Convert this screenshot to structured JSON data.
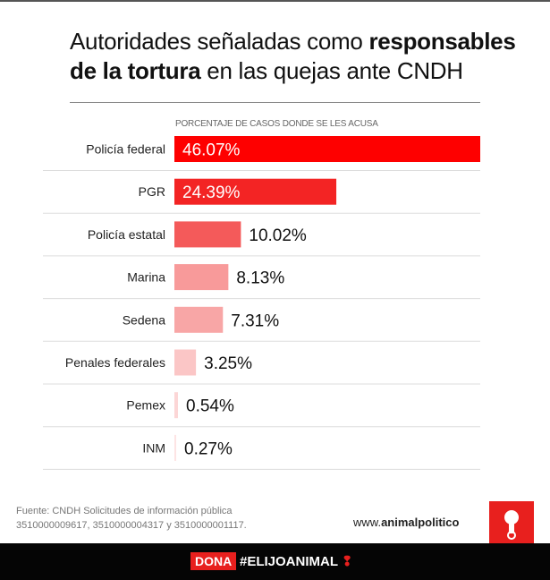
{
  "title": {
    "normal1": "Autoridades señaladas como ",
    "bold1": "responsables",
    "bold2": "de la tortura",
    "normal2": " en las quejas ante CNDH"
  },
  "chart_data": {
    "type": "bar",
    "orientation": "horizontal",
    "subtitle": "PORCENTAJE DE CASOS DONDE SE LES ACUSA",
    "categories": [
      "Policía federal",
      "PGR",
      "Policía estatal",
      "Marina",
      "Sedena",
      "Penales federales",
      "Pemex",
      "INM"
    ],
    "values": [
      46.07,
      24.39,
      10.02,
      8.13,
      7.31,
      3.25,
      0.54,
      0.27
    ],
    "labels": [
      "46.07%",
      "24.39%",
      "10.02%",
      "8.13%",
      "7.31%",
      "3.25%",
      "0.54%",
      "0.27%"
    ],
    "colors": [
      "#fe0000",
      "#f32424",
      "#f45a5a",
      "#f89a9a",
      "#f8a6a6",
      "#fbc6c6",
      "#fcd6d6",
      "#fde4e4"
    ],
    "grid": false
  },
  "footer": {
    "source_line1": "Fuente: CNDH Solicitudes de información pública",
    "source_line2": "3510000009617, 3510000004317 y 3510000001117."
  },
  "brand": {
    "url_pre": "www.",
    "url_bold": "animalpolitico",
    ".com": ".com",
    "accent": "#e8201e"
  },
  "bottom": {
    "dona": "DONA",
    "hashtag": "#ELIJOANIMAL",
    "mark": "❢"
  }
}
